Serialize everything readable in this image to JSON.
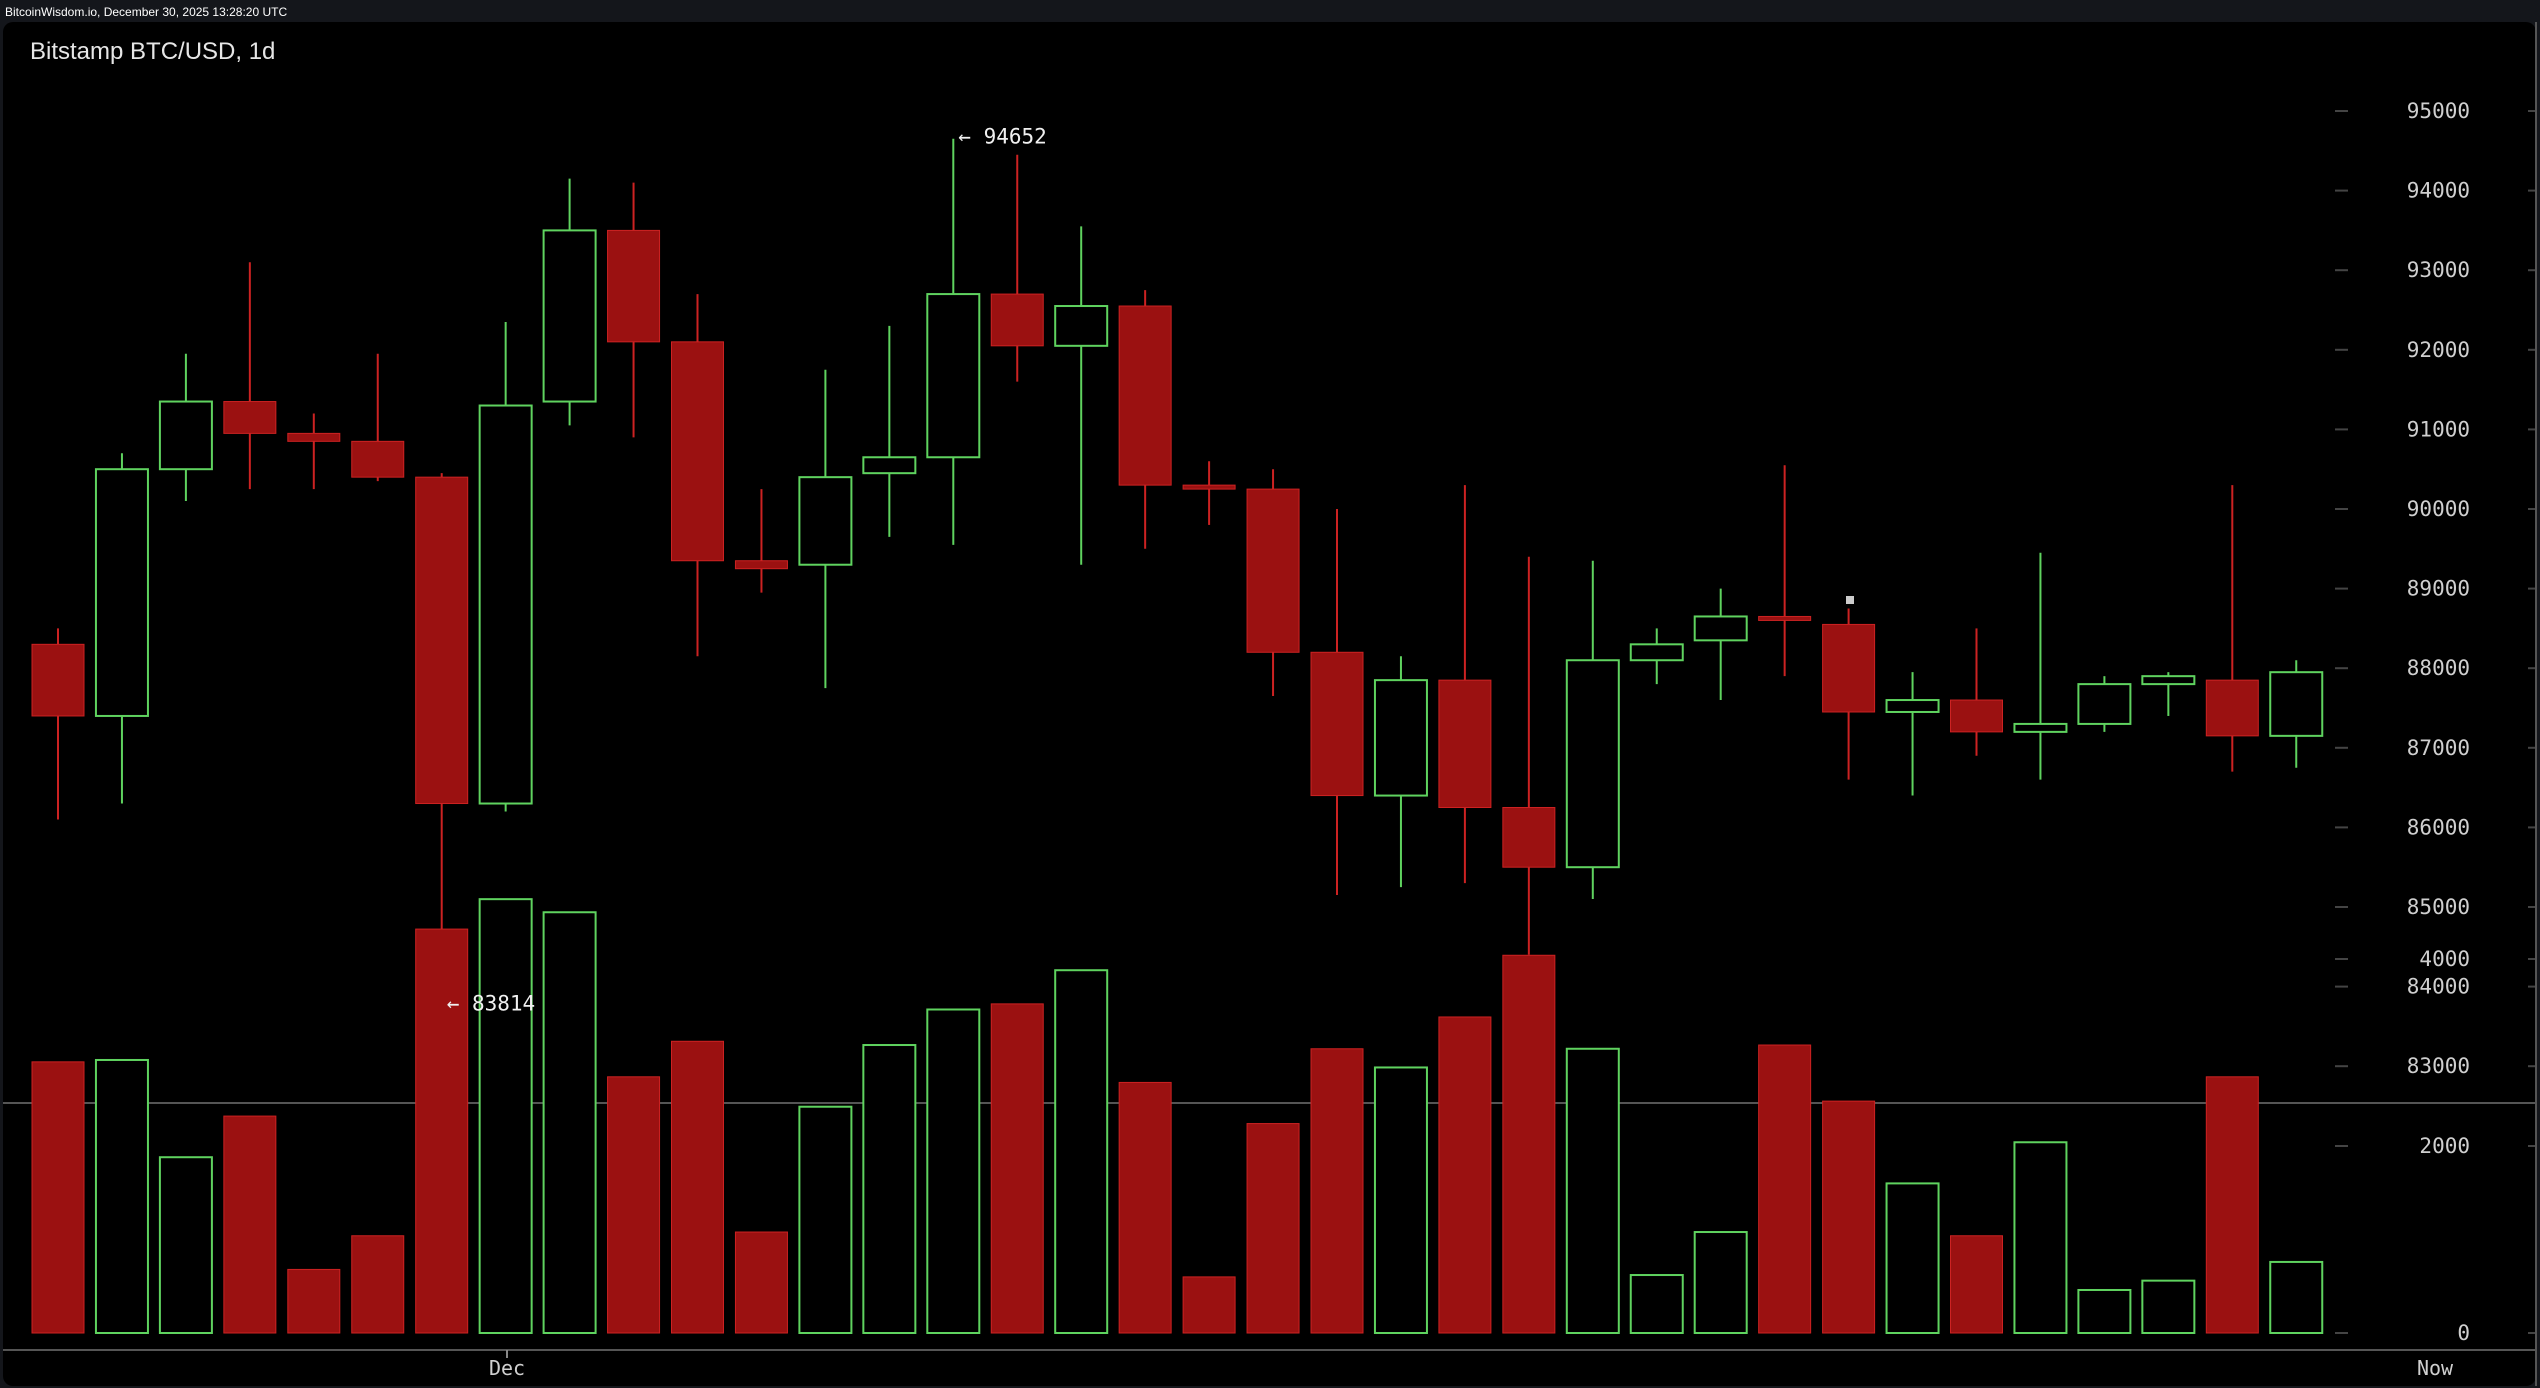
{
  "header": {
    "source_line": "BitcoinWisdom.io, December 30, 2025 13:28:20 UTC"
  },
  "chart_title": "Bitstamp BTC/USD, 1d",
  "annotations": {
    "high_label": "← 94652",
    "low_label": "← 83814"
  },
  "x_labels": {
    "dec": "Dec",
    "now": "Now"
  },
  "colors": {
    "up": "#5fd35f",
    "down": "#9b1111",
    "down_wick": "#cc2222",
    "grid": "#444444",
    "axis_text": "#cfcfcf"
  },
  "chart_data": [
    {
      "type": "candlestick",
      "title": "Bitstamp BTC/USD, 1d",
      "x_tick_labels": [
        "Dec",
        "Now"
      ],
      "y_ticks": [
        95000,
        94000,
        93000,
        92000,
        91000,
        90000,
        89000,
        88000,
        87000,
        86000,
        85000,
        84000,
        83000
      ],
      "ylim": [
        82300,
        96200
      ],
      "high_annotation": 94652,
      "low_annotation": 83814,
      "candles": [
        {
          "o": 88300,
          "h": 88500,
          "l": 86100,
          "c": 87400
        },
        {
          "o": 87400,
          "h": 90700,
          "l": 86300,
          "c": 90500
        },
        {
          "o": 90500,
          "h": 91950,
          "l": 90100,
          "c": 91350
        },
        {
          "o": 91350,
          "h": 93100,
          "l": 90250,
          "c": 90950
        },
        {
          "o": 90950,
          "h": 91200,
          "l": 90250,
          "c": 90850
        },
        {
          "o": 90850,
          "h": 91950,
          "l": 90350,
          "c": 90400
        },
        {
          "o": 90400,
          "h": 90450,
          "l": 83814,
          "c": 86300
        },
        {
          "o": 86300,
          "h": 92350,
          "l": 86200,
          "c": 91300
        },
        {
          "o": 91350,
          "h": 94150,
          "l": 91050,
          "c": 93500
        },
        {
          "o": 93500,
          "h": 94100,
          "l": 90900,
          "c": 92100
        },
        {
          "o": 92100,
          "h": 92700,
          "l": 88150,
          "c": 89350
        },
        {
          "o": 89350,
          "h": 90250,
          "l": 88950,
          "c": 89250
        },
        {
          "o": 89300,
          "h": 91750,
          "l": 87750,
          "c": 90400
        },
        {
          "o": 90450,
          "h": 92300,
          "l": 89650,
          "c": 90650
        },
        {
          "o": 90650,
          "h": 94652,
          "l": 89550,
          "c": 92700
        },
        {
          "o": 92700,
          "h": 94450,
          "l": 91600,
          "c": 92050
        },
        {
          "o": 92050,
          "h": 93550,
          "l": 89300,
          "c": 92550
        },
        {
          "o": 92550,
          "h": 92750,
          "l": 89500,
          "c": 90300
        },
        {
          "o": 90300,
          "h": 90600,
          "l": 89800,
          "c": 90250
        },
        {
          "o": 90250,
          "h": 90500,
          "l": 87650,
          "c": 88200
        },
        {
          "o": 88200,
          "h": 90000,
          "l": 85150,
          "c": 86400
        },
        {
          "o": 86400,
          "h": 88150,
          "l": 85250,
          "c": 87850
        },
        {
          "o": 87850,
          "h": 90300,
          "l": 85300,
          "c": 86250
        },
        {
          "o": 86250,
          "h": 89400,
          "l": 84400,
          "c": 85500
        },
        {
          "o": 85500,
          "h": 89350,
          "l": 85100,
          "c": 88100
        },
        {
          "o": 88100,
          "h": 88500,
          "l": 87800,
          "c": 88300
        },
        {
          "o": 88350,
          "h": 89000,
          "l": 87600,
          "c": 88650
        },
        {
          "o": 88650,
          "h": 90550,
          "l": 87900,
          "c": 88600
        },
        {
          "o": 88550,
          "h": 88750,
          "l": 86600,
          "c": 87450
        },
        {
          "o": 87450,
          "h": 87950,
          "l": 86400,
          "c": 87600
        },
        {
          "o": 87600,
          "h": 88500,
          "l": 86900,
          "c": 87200
        },
        {
          "o": 87200,
          "h": 89450,
          "l": 86600,
          "c": 87300
        },
        {
          "o": 87300,
          "h": 87900,
          "l": 87200,
          "c": 87800
        },
        {
          "o": 87800,
          "h": 87950,
          "l": 87400,
          "c": 87900
        },
        {
          "o": 87850,
          "h": 90300,
          "l": 86700,
          "c": 87150
        },
        {
          "o": 87150,
          "h": 88100,
          "l": 86750,
          "c": 87950
        }
      ]
    },
    {
      "type": "bar",
      "title": "Volume",
      "y_ticks": [
        4000,
        2000,
        0
      ],
      "ylim": [
        0,
        4750
      ],
      "values": [
        2900,
        2920,
        1880,
        2320,
        680,
        1040,
        4320,
        4640,
        4500,
        2740,
        3120,
        1080,
        2420,
        3080,
        3460,
        3520,
        3880,
        2680,
        600,
        2240,
        3040,
        2840,
        3380,
        4040,
        3040,
        620,
        1080,
        3080,
        2480,
        1600,
        1040,
        2040,
        460,
        560,
        2740,
        760
      ],
      "up": [
        false,
        true,
        true,
        false,
        false,
        false,
        false,
        true,
        true,
        false,
        false,
        false,
        true,
        true,
        true,
        false,
        true,
        false,
        false,
        false,
        false,
        true,
        false,
        false,
        true,
        true,
        true,
        false,
        false,
        true,
        false,
        true,
        true,
        true,
        false,
        true
      ]
    }
  ]
}
